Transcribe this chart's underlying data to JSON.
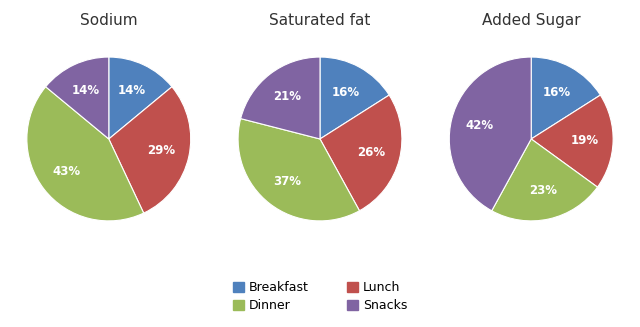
{
  "charts": [
    {
      "title": "Sodium",
      "values": [
        14,
        29,
        43,
        14
      ],
      "labels": [
        "Breakfast",
        "Lunch",
        "Dinner",
        "Snacks"
      ],
      "startangle": 90
    },
    {
      "title": "Saturated fat",
      "values": [
        16,
        26,
        37,
        21
      ],
      "labels": [
        "Breakfast",
        "Lunch",
        "Dinner",
        "Snacks"
      ],
      "startangle": 90
    },
    {
      "title": "Added Sugar",
      "values": [
        16,
        19,
        23,
        42
      ],
      "labels": [
        "Breakfast",
        "Lunch",
        "Dinner",
        "Snacks"
      ],
      "startangle": 90
    }
  ],
  "colors": {
    "Breakfast": "#4f81bd",
    "Lunch": "#c0504d",
    "Dinner": "#9bbb59",
    "Snacks": "#8064a2"
  },
  "legend_order": [
    "Breakfast",
    "Dinner",
    "Lunch",
    "Snacks"
  ],
  "background_color": "#ffffff",
  "text_color": "#ffffff",
  "label_fontsize": 8.5,
  "title_fontsize": 11
}
